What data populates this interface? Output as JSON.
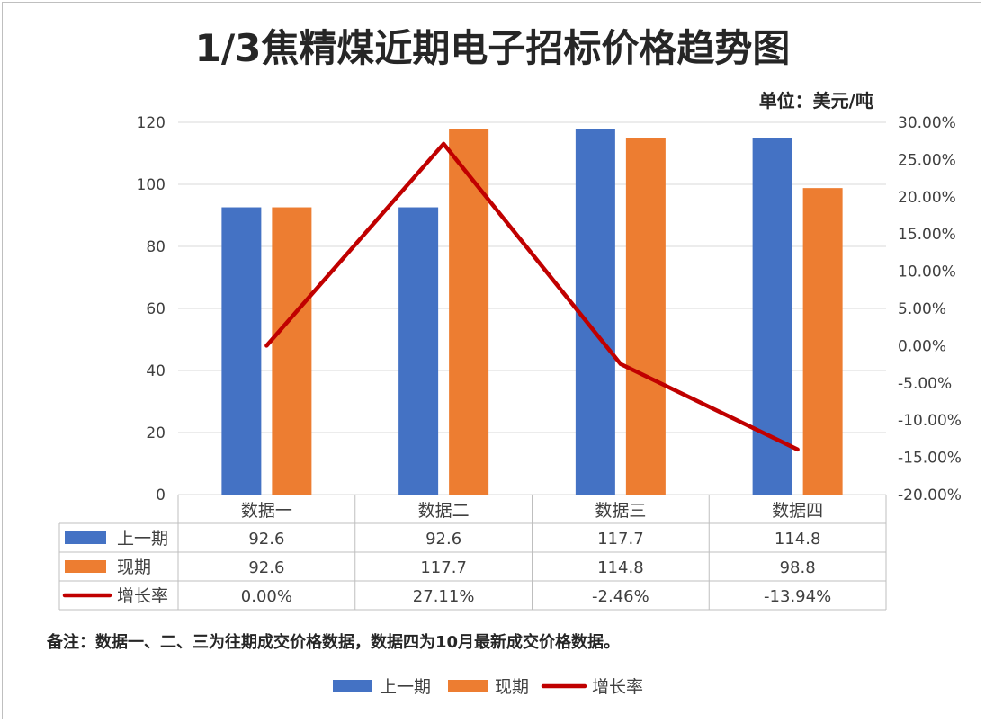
{
  "title": "1/3焦精煤近期电子招标价格趋势图",
  "unit": "单位：美元/吨",
  "note": "备注：数据一、二、三为往期成交价格数据，数据四为10月最新成交价格数据。",
  "colors": {
    "series1": "#4472C4",
    "series2": "#ED7D31",
    "line": "#C00000"
  },
  "chart_data": {
    "type": "bar",
    "categories": [
      "数据一",
      "数据二",
      "数据三",
      "数据四"
    ],
    "series": [
      {
        "name": "上一期",
        "type": "bar",
        "axis": "left",
        "values": [
          92.6,
          92.6,
          117.7,
          114.8
        ],
        "labels": [
          "92.6",
          "92.6",
          "117.7",
          "114.8"
        ]
      },
      {
        "name": "现期",
        "type": "bar",
        "axis": "left",
        "values": [
          92.6,
          117.7,
          114.8,
          98.8
        ],
        "labels": [
          "92.6",
          "117.7",
          "114.8",
          "98.8"
        ]
      },
      {
        "name": "增长率",
        "type": "line",
        "axis": "right",
        "values": [
          0.0,
          27.11,
          -2.46,
          -13.94
        ],
        "labels": [
          "0.00%",
          "27.11%",
          "-2.46%",
          "-13.94%"
        ]
      }
    ],
    "y_left": {
      "min": 0,
      "max": 120,
      "ticks": [
        0,
        20,
        40,
        60,
        80,
        100,
        120
      ]
    },
    "y_right": {
      "min": -20,
      "max": 30,
      "ticks": [
        "-20.00%",
        "-15.00%",
        "-10.00%",
        "-5.00%",
        "0.00%",
        "5.00%",
        "10.00%",
        "15.00%",
        "20.00%",
        "25.00%",
        "30.00%"
      ],
      "tick_values": [
        -20,
        -15,
        -10,
        -5,
        0,
        5,
        10,
        15,
        20,
        25,
        30
      ]
    },
    "grid": true,
    "data_table": true,
    "legend": "bottom"
  }
}
